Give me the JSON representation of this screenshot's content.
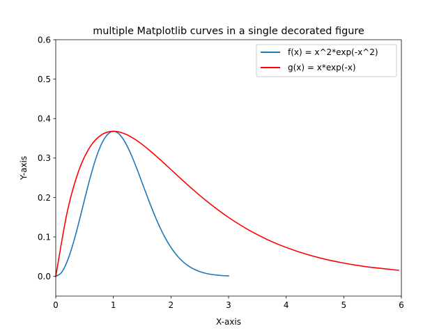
{
  "chart_data": {
    "type": "line",
    "title": "multiple Matplotlib curves in a single decorated figure",
    "xlabel": "X-axis",
    "ylabel": "Y-axis",
    "xlim": [
      0,
      6
    ],
    "ylim": [
      -0.05,
      0.6
    ],
    "xticks": [
      0,
      1,
      2,
      3,
      4,
      5,
      6
    ],
    "yticks": [
      0.0,
      0.1,
      0.2,
      0.3,
      0.4,
      0.5,
      0.6
    ],
    "xtick_labels": [
      "0",
      "1",
      "2",
      "3",
      "4",
      "5",
      "6"
    ],
    "ytick_labels": [
      "0.0",
      "0.1",
      "0.2",
      "0.3",
      "0.4",
      "0.5",
      "0.6"
    ],
    "grid": false,
    "legend_position": "top-right",
    "series": [
      {
        "name": "f(x) = x^2*exp(-x^2)",
        "color": "#1f77b4",
        "x": [
          0.0,
          0.1,
          0.2,
          0.3,
          0.4,
          0.5,
          0.6,
          0.7,
          0.8,
          0.9,
          1.0,
          1.1,
          1.2,
          1.3,
          1.4,
          1.5,
          1.6,
          1.7,
          1.8,
          1.9,
          2.0,
          2.1,
          2.2,
          2.3,
          2.4,
          2.5,
          2.6,
          2.7,
          2.8,
          2.9,
          3.0
        ],
        "y": [
          0.0,
          0.0099,
          0.0384,
          0.0823,
          0.1363,
          0.1947,
          0.2512,
          0.3003,
          0.3375,
          0.3597,
          0.3679,
          0.3609,
          0.3411,
          0.3116,
          0.276,
          0.2371,
          0.198,
          0.1608,
          0.127,
          0.0976,
          0.0733,
          0.0536,
          0.0382,
          0.0267,
          0.0182,
          0.0121,
          0.0079,
          0.005,
          0.0031,
          0.0019,
          0.0011
        ]
      },
      {
        "name": "g(x) = x*exp(-x)",
        "color": "#ff0000",
        "x": [
          0.0,
          0.2,
          0.4,
          0.6,
          0.8,
          1.0,
          1.2,
          1.4,
          1.6,
          1.8,
          2.0,
          2.3,
          2.6,
          3.0,
          3.4,
          3.8,
          4.2,
          4.6,
          5.0,
          5.4,
          5.95
        ],
        "y": [
          0.0,
          0.1637,
          0.2681,
          0.3293,
          0.3595,
          0.3679,
          0.3614,
          0.3452,
          0.323,
          0.2975,
          0.2707,
          0.2306,
          0.1931,
          0.1494,
          0.1135,
          0.085,
          0.063,
          0.0462,
          0.0337,
          0.0243,
          0.0155
        ]
      }
    ]
  }
}
